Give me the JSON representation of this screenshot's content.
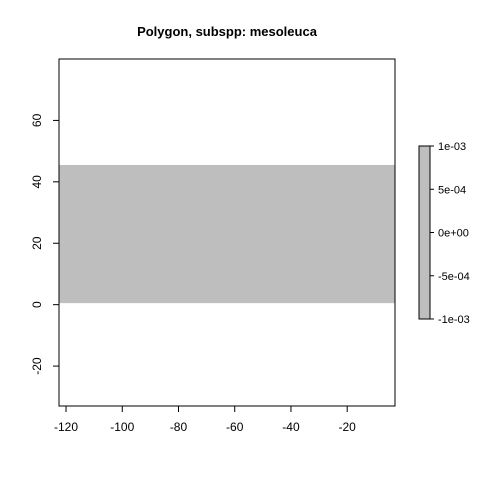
{
  "chart_data": {
    "type": "heatmap",
    "title": "Polygon, subspp: mesoleuca",
    "xlabel": "",
    "ylabel": "",
    "xlim": [
      -122.5,
      -3
    ],
    "ylim": [
      -33,
      80
    ],
    "x_ticks": [
      -120,
      -100,
      -80,
      -60,
      -40,
      -20
    ],
    "y_ticks": [
      -20,
      0,
      20,
      40,
      60
    ],
    "regions": [
      {
        "x": [
          -122.5,
          -3
        ],
        "y": [
          0.5,
          45.5
        ],
        "value": 0,
        "color": "#bebebe"
      }
    ],
    "legend": {
      "position": "right",
      "color": "#bebebe",
      "range": [
        -0.001,
        0.001
      ],
      "ticks": [
        {
          "value": 0.001,
          "label": "1e-03"
        },
        {
          "value": 0.0005,
          "label": "5e-04"
        },
        {
          "value": 0,
          "label": "0e+00"
        },
        {
          "value": -0.0005,
          "label": "-5e-04"
        },
        {
          "value": -0.001,
          "label": "-1e-03"
        }
      ]
    }
  }
}
